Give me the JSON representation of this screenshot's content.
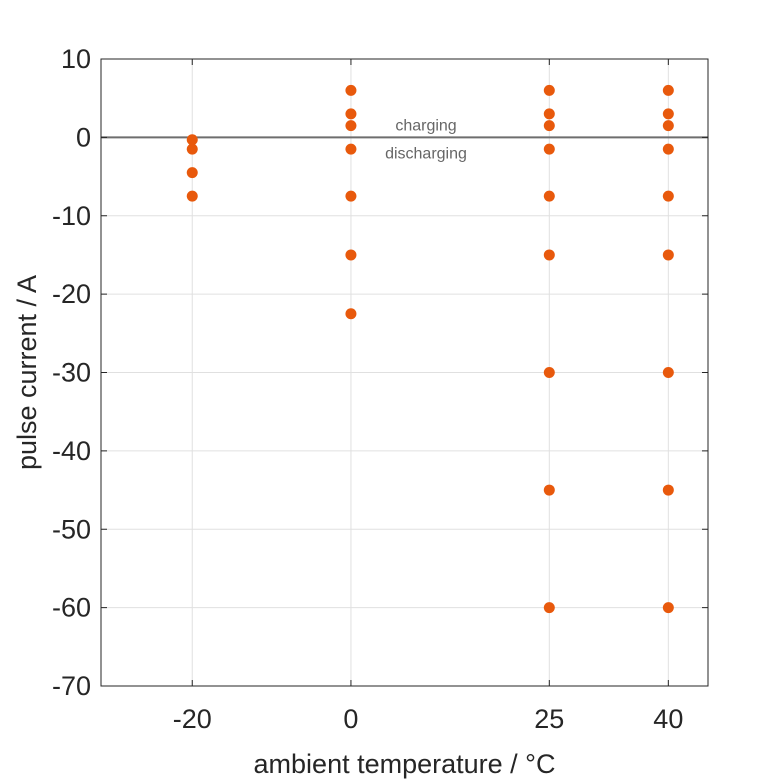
{
  "chart_data": {
    "type": "scatter",
    "title": "",
    "xlabel": "ambient temperature / °C",
    "ylabel": "pulse current / A",
    "x_ticks": [
      -20,
      0,
      25,
      40
    ],
    "y_ticks": [
      10,
      0,
      -10,
      -20,
      -30,
      -40,
      -50,
      -60,
      -70
    ],
    "xlim": [
      -31.5,
      45
    ],
    "ylim": [
      -70,
      10
    ],
    "grid": true,
    "reference_line": {
      "y": 0,
      "color": "#6e6e6e"
    },
    "annotations": {
      "above": "charging",
      "below": "discharging"
    },
    "marker_color": "#e8590c",
    "series": [
      {
        "points": [
          {
            "x": -20,
            "y": -0.3
          },
          {
            "x": -20,
            "y": -1.5
          },
          {
            "x": -20,
            "y": -4.5
          },
          {
            "x": -20,
            "y": -7.5
          },
          {
            "x": 0,
            "y": 6
          },
          {
            "x": 0,
            "y": 3
          },
          {
            "x": 0,
            "y": 1.5
          },
          {
            "x": 0,
            "y": -1.5
          },
          {
            "x": 0,
            "y": -7.5
          },
          {
            "x": 0,
            "y": -15
          },
          {
            "x": 0,
            "y": -22.5
          },
          {
            "x": 25,
            "y": 6
          },
          {
            "x": 25,
            "y": 3
          },
          {
            "x": 25,
            "y": 1.5
          },
          {
            "x": 25,
            "y": -1.5
          },
          {
            "x": 25,
            "y": -7.5
          },
          {
            "x": 25,
            "y": -15
          },
          {
            "x": 25,
            "y": -30
          },
          {
            "x": 25,
            "y": -45
          },
          {
            "x": 25,
            "y": -60
          },
          {
            "x": 40,
            "y": 6
          },
          {
            "x": 40,
            "y": 3
          },
          {
            "x": 40,
            "y": 1.5
          },
          {
            "x": 40,
            "y": -1.5
          },
          {
            "x": 40,
            "y": -7.5
          },
          {
            "x": 40,
            "y": -15
          },
          {
            "x": 40,
            "y": -30
          },
          {
            "x": 40,
            "y": -45
          },
          {
            "x": 40,
            "y": -60
          }
        ]
      }
    ]
  }
}
